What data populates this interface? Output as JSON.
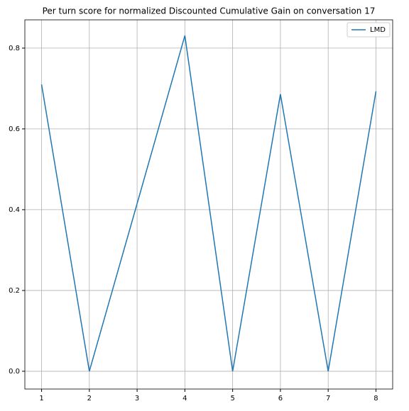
{
  "chart_data": {
    "type": "line",
    "title": "Per turn score for normalized Discounted Cumulative Gain on conversation 17",
    "x": [
      1,
      2,
      3,
      4,
      5,
      6,
      7,
      8
    ],
    "series": [
      {
        "name": "LMD",
        "color": "#1f77b4",
        "values": [
          0.71,
          0.0,
          0.415,
          0.831,
          0.0,
          0.686,
          0.0,
          0.693
        ]
      }
    ],
    "xlim": [
      0.65,
      8.35
    ],
    "xticks": [
      1,
      2,
      3,
      4,
      5,
      6,
      7,
      8
    ],
    "ylim": [
      -0.044,
      0.87
    ],
    "yticks": [
      {
        "value": 0,
        "label": "0.0"
      },
      {
        "value": 0.2,
        "label": "0.2"
      },
      {
        "value": 0.4,
        "label": "0.4"
      },
      {
        "value": 0.6,
        "label": "0.6"
      },
      {
        "value": 0.8,
        "label": "0.8"
      }
    ],
    "grid": true,
    "legend": "upper right"
  }
}
